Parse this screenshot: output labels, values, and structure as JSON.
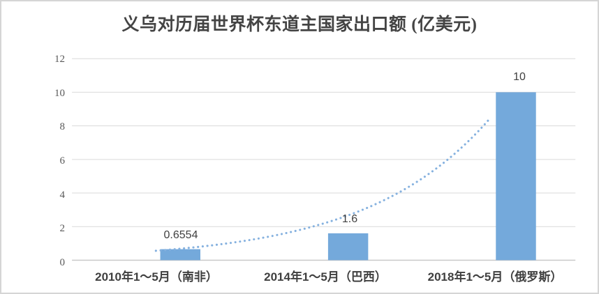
{
  "chart_data": {
    "type": "bar",
    "title": "义乌对历届世界杯东道主国家出口额 (亿美元)",
    "categories": [
      "2010年1～5月（南非）",
      "2014年1～5月（巴西）",
      "2018年1～5月（俄罗斯）"
    ],
    "values": [
      0.6554,
      1.6,
      10
    ],
    "data_labels": [
      "0.6554",
      "1.6",
      "10"
    ],
    "y_tick_labels": [
      "12",
      "10",
      "8",
      "6",
      "4",
      "2",
      "0"
    ],
    "y_ticks": [
      0,
      2,
      4,
      6,
      8,
      10,
      12
    ],
    "ylim": [
      0,
      12
    ],
    "grid": true,
    "legend": null,
    "trendline": {
      "type": "exponential",
      "style": "dotted",
      "a": 2.1888,
      "k": 1.36257,
      "t_start": 1.0,
      "t_end": 2.99
    },
    "colors": {
      "bar": "#74A9DB",
      "trendline": "#85B1DF",
      "gridline": "#D9D9D9",
      "axis_line": "#C9C9C9",
      "tick_text": "#595959",
      "label_text": "#3F3F3F",
      "frame_border": "#D5D5D5"
    }
  }
}
